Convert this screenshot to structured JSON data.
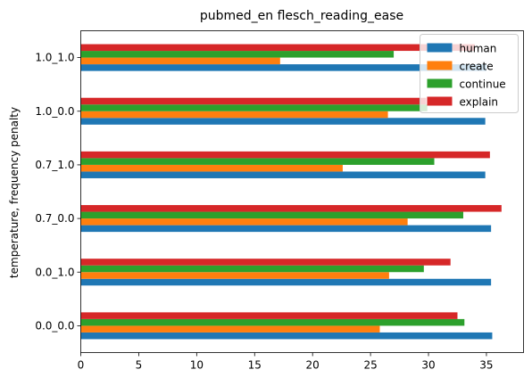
{
  "chart_data": {
    "type": "bar",
    "orientation": "horizontal",
    "title": "pubmed_en flesch_reading_ease",
    "xlabel": "",
    "ylabel": "temperature, frequency penalty",
    "categories": [
      "0.0_0.0",
      "0.0_1.0",
      "0.7_0.0",
      "0.7_1.0",
      "1.0_0.0",
      "1.0_1.0"
    ],
    "xlim": [
      0,
      38.2
    ],
    "xticks": [
      0,
      5,
      10,
      15,
      20,
      25,
      30,
      35
    ],
    "legend_position": "top-right",
    "grid": false,
    "series": [
      {
        "name": "human",
        "color": "#1f77b4",
        "values": [
          35.5,
          35.4,
          35.4,
          34.9,
          34.9,
          35.0
        ]
      },
      {
        "name": "create",
        "color": "#ff7f0e",
        "values": [
          25.8,
          26.6,
          28.2,
          22.6,
          26.5,
          17.2
        ]
      },
      {
        "name": "continue",
        "color": "#2ca02c",
        "values": [
          33.1,
          29.6,
          33.0,
          30.5,
          29.9,
          27.0
        ]
      },
      {
        "name": "explain",
        "color": "#d62728",
        "values": [
          32.5,
          31.9,
          36.3,
          35.3,
          29.8,
          34.0
        ]
      }
    ]
  }
}
